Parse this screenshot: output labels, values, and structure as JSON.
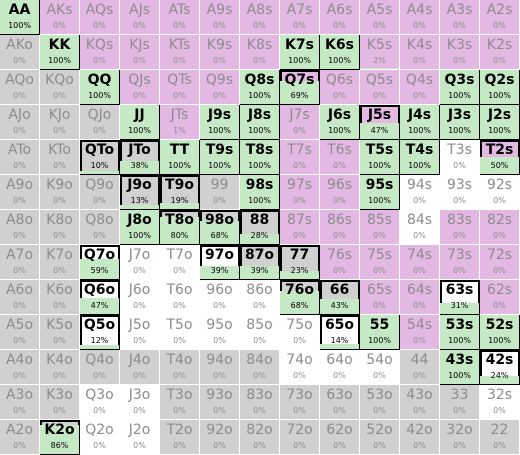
{
  "colors": {
    "pair": "#d0d0d0",
    "suited": "#e3b9e3",
    "offsuit": "#d0d0d0",
    "filled": "#c5e8c5",
    "partial": "#ffffff",
    "border": "#ffffff",
    "text_dim": "#8c8c8c",
    "text_sel": "#000000"
  },
  "grid": [
    [
      {
        "hand": "AA",
        "pct": "100%",
        "v": 100,
        "sel": true
      },
      {
        "hand": "AKs",
        "pct": "0%",
        "v": 0
      },
      {
        "hand": "AQs",
        "pct": "0%",
        "v": 0
      },
      {
        "hand": "AJs",
        "pct": "0%",
        "v": 0
      },
      {
        "hand": "ATs",
        "pct": "0%",
        "v": 0
      },
      {
        "hand": "A9s",
        "pct": "0%",
        "v": 0
      },
      {
        "hand": "A8s",
        "pct": "0%",
        "v": 0
      },
      {
        "hand": "A7s",
        "pct": "0%",
        "v": 0
      },
      {
        "hand": "A6s",
        "pct": "0%",
        "v": 0
      },
      {
        "hand": "A5s",
        "pct": "0%",
        "v": 0
      },
      {
        "hand": "A4s",
        "pct": "0%",
        "v": 0
      },
      {
        "hand": "A3s",
        "pct": "0%",
        "v": 0
      },
      {
        "hand": "A2s",
        "pct": "0%",
        "v": 0
      }
    ],
    [
      {
        "hand": "AKo",
        "pct": "0%",
        "v": 0
      },
      {
        "hand": "KK",
        "pct": "100%",
        "v": 100,
        "sel": true
      },
      {
        "hand": "KQs",
        "pct": "0%",
        "v": 0
      },
      {
        "hand": "KJs",
        "pct": "0%",
        "v": 0
      },
      {
        "hand": "KTs",
        "pct": "0%",
        "v": 0
      },
      {
        "hand": "K9s",
        "pct": "0%",
        "v": 0
      },
      {
        "hand": "K8s",
        "pct": "0%",
        "v": 0
      },
      {
        "hand": "K7s",
        "pct": "100%",
        "v": 100,
        "sel": true
      },
      {
        "hand": "K6s",
        "pct": "100%",
        "v": 100,
        "sel": true
      },
      {
        "hand": "K5s",
        "pct": "2%",
        "v": 2
      },
      {
        "hand": "K4s",
        "pct": "0%",
        "v": 0
      },
      {
        "hand": "K3s",
        "pct": "0%",
        "v": 0
      },
      {
        "hand": "K2s",
        "pct": "0%",
        "v": 0
      }
    ],
    [
      {
        "hand": "AQo",
        "pct": "0%",
        "v": 0
      },
      {
        "hand": "KQo",
        "pct": "0%",
        "v": 0
      },
      {
        "hand": "QQ",
        "pct": "100%",
        "v": 100,
        "sel": true
      },
      {
        "hand": "QJs",
        "pct": "0%",
        "v": 0
      },
      {
        "hand": "QTs",
        "pct": "0%",
        "v": 0
      },
      {
        "hand": "Q9s",
        "pct": "0%",
        "v": 0
      },
      {
        "hand": "Q8s",
        "pct": "100%",
        "v": 100,
        "sel": true
      },
      {
        "hand": "Q7s",
        "pct": "69%",
        "v": 69,
        "sel": true
      },
      {
        "hand": "Q6s",
        "pct": "0%",
        "v": 0
      },
      {
        "hand": "Q5s",
        "pct": "0%",
        "v": 0
      },
      {
        "hand": "Q4s",
        "pct": "0%",
        "v": 0
      },
      {
        "hand": "Q3s",
        "pct": "100%",
        "v": 100,
        "sel": true
      },
      {
        "hand": "Q2s",
        "pct": "100%",
        "v": 100,
        "sel": true
      }
    ],
    [
      {
        "hand": "AJo",
        "pct": "0%",
        "v": 0
      },
      {
        "hand": "KJo",
        "pct": "0%",
        "v": 0
      },
      {
        "hand": "QJo",
        "pct": "0%",
        "v": 0
      },
      {
        "hand": "JJ",
        "pct": "100%",
        "v": 100,
        "sel": true
      },
      {
        "hand": "JTs",
        "pct": "1%",
        "v": 1
      },
      {
        "hand": "J9s",
        "pct": "100%",
        "v": 100,
        "sel": true
      },
      {
        "hand": "J8s",
        "pct": "100%",
        "v": 100,
        "sel": true
      },
      {
        "hand": "J7s",
        "pct": "0%",
        "v": 0
      },
      {
        "hand": "J6s",
        "pct": "100%",
        "v": 100,
        "sel": true
      },
      {
        "hand": "J5s",
        "pct": "47%",
        "v": 47,
        "sel": true
      },
      {
        "hand": "J4s",
        "pct": "100%",
        "v": 100,
        "sel": true
      },
      {
        "hand": "J3s",
        "pct": "100%",
        "v": 100,
        "sel": true
      },
      {
        "hand": "J2s",
        "pct": "100%",
        "v": 100,
        "sel": true
      }
    ],
    [
      {
        "hand": "ATo",
        "pct": "0%",
        "v": 0
      },
      {
        "hand": "KTo",
        "pct": "0%",
        "v": 0
      },
      {
        "hand": "QTo",
        "pct": "10%",
        "v": 10,
        "sel": true
      },
      {
        "hand": "JTo",
        "pct": "38%",
        "v": 38,
        "sel": true
      },
      {
        "hand": "TT",
        "pct": "100%",
        "v": 100,
        "sel": true
      },
      {
        "hand": "T9s",
        "pct": "100%",
        "v": 100,
        "sel": true
      },
      {
        "hand": "T8s",
        "pct": "100%",
        "v": 100,
        "sel": true
      },
      {
        "hand": "T7s",
        "pct": "0%",
        "v": 0
      },
      {
        "hand": "T6s",
        "pct": "0%",
        "v": 0
      },
      {
        "hand": "T5s",
        "pct": "100%",
        "v": 100,
        "sel": true
      },
      {
        "hand": "T4s",
        "pct": "100%",
        "v": 100,
        "sel": true
      },
      {
        "hand": "T3s",
        "pct": "0%",
        "v": 0,
        "white": true
      },
      {
        "hand": "T2s",
        "pct": "50%",
        "v": 50,
        "sel": true
      }
    ],
    [
      {
        "hand": "A9o",
        "pct": "0%",
        "v": 0
      },
      {
        "hand": "K9o",
        "pct": "0%",
        "v": 0
      },
      {
        "hand": "Q9o",
        "pct": "0%",
        "v": 0
      },
      {
        "hand": "J9o",
        "pct": "13%",
        "v": 13,
        "sel": true
      },
      {
        "hand": "T9o",
        "pct": "19%",
        "v": 19,
        "sel": true
      },
      {
        "hand": "99",
        "pct": "0%",
        "v": 0
      },
      {
        "hand": "98s",
        "pct": "100%",
        "v": 100,
        "sel": true
      },
      {
        "hand": "97s",
        "pct": "0%",
        "v": 0
      },
      {
        "hand": "96s",
        "pct": "0%",
        "v": 0
      },
      {
        "hand": "95s",
        "pct": "100%",
        "v": 100,
        "sel": true
      },
      {
        "hand": "94s",
        "pct": "0%",
        "v": 0,
        "white": true
      },
      {
        "hand": "93s",
        "pct": "0%",
        "v": 0,
        "white": true
      },
      {
        "hand": "92s",
        "pct": "0%",
        "v": 0,
        "white": true
      }
    ],
    [
      {
        "hand": "A8o",
        "pct": "0%",
        "v": 0
      },
      {
        "hand": "K8o",
        "pct": "0%",
        "v": 0
      },
      {
        "hand": "Q8o",
        "pct": "0%",
        "v": 0
      },
      {
        "hand": "J8o",
        "pct": "100%",
        "v": 100,
        "sel": true
      },
      {
        "hand": "T8o",
        "pct": "80%",
        "v": 80,
        "sel": true
      },
      {
        "hand": "98o",
        "pct": "68%",
        "v": 68,
        "sel": true
      },
      {
        "hand": "88",
        "pct": "28%",
        "v": 28,
        "sel": true
      },
      {
        "hand": "87s",
        "pct": "0%",
        "v": 0
      },
      {
        "hand": "86s",
        "pct": "0%",
        "v": 0
      },
      {
        "hand": "85s",
        "pct": "0%",
        "v": 0
      },
      {
        "hand": "84s",
        "pct": "0%",
        "v": 0,
        "white": true
      },
      {
        "hand": "83s",
        "pct": "0%",
        "v": 0
      },
      {
        "hand": "82s",
        "pct": "0%",
        "v": 0
      }
    ],
    [
      {
        "hand": "A7o",
        "pct": "0%",
        "v": 0
      },
      {
        "hand": "K7o",
        "pct": "0%",
        "v": 0
      },
      {
        "hand": "Q7o",
        "pct": "59%",
        "v": 59,
        "sel": true,
        "white": true
      },
      {
        "hand": "J7o",
        "pct": "0%",
        "v": 0,
        "white": true
      },
      {
        "hand": "T7o",
        "pct": "0%",
        "v": 0,
        "white": true
      },
      {
        "hand": "97o",
        "pct": "39%",
        "v": 39,
        "sel": true,
        "white": true
      },
      {
        "hand": "87o",
        "pct": "39%",
        "v": 39,
        "sel": true
      },
      {
        "hand": "77",
        "pct": "23%",
        "v": 23,
        "sel": true
      },
      {
        "hand": "76s",
        "pct": "0%",
        "v": 0
      },
      {
        "hand": "75s",
        "pct": "0%",
        "v": 0
      },
      {
        "hand": "74s",
        "pct": "0%",
        "v": 0
      },
      {
        "hand": "73s",
        "pct": "0%",
        "v": 0
      },
      {
        "hand": "72s",
        "pct": "0%",
        "v": 0
      }
    ],
    [
      {
        "hand": "A6o",
        "pct": "0%",
        "v": 0
      },
      {
        "hand": "K6o",
        "pct": "0%",
        "v": 0
      },
      {
        "hand": "Q6o",
        "pct": "47%",
        "v": 47,
        "sel": true,
        "white": true
      },
      {
        "hand": "J6o",
        "pct": "0%",
        "v": 0,
        "white": true
      },
      {
        "hand": "T6o",
        "pct": "0%",
        "v": 0,
        "white": true
      },
      {
        "hand": "96o",
        "pct": "0%",
        "v": 0,
        "white": true
      },
      {
        "hand": "86o",
        "pct": "0%",
        "v": 0,
        "white": true
      },
      {
        "hand": "76o",
        "pct": "68%",
        "v": 68,
        "sel": true
      },
      {
        "hand": "66",
        "pct": "43%",
        "v": 43,
        "sel": true
      },
      {
        "hand": "65s",
        "pct": "0%",
        "v": 0
      },
      {
        "hand": "64s",
        "pct": "0%",
        "v": 0
      },
      {
        "hand": "63s",
        "pct": "31%",
        "v": 31,
        "sel": true,
        "white": true
      },
      {
        "hand": "62s",
        "pct": "0%",
        "v": 0
      }
    ],
    [
      {
        "hand": "A5o",
        "pct": "0%",
        "v": 0
      },
      {
        "hand": "K5o",
        "pct": "0%",
        "v": 0
      },
      {
        "hand": "Q5o",
        "pct": "12%",
        "v": 12,
        "sel": true,
        "white": true
      },
      {
        "hand": "J5o",
        "pct": "0%",
        "v": 0,
        "white": true
      },
      {
        "hand": "T5o",
        "pct": "0%",
        "v": 0,
        "white": true
      },
      {
        "hand": "95o",
        "pct": "0%",
        "v": 0,
        "white": true
      },
      {
        "hand": "85o",
        "pct": "0%",
        "v": 0,
        "white": true
      },
      {
        "hand": "75o",
        "pct": "0%",
        "v": 0,
        "white": true
      },
      {
        "hand": "65o",
        "pct": "14%",
        "v": 14,
        "sel": true,
        "white": true
      },
      {
        "hand": "55",
        "pct": "100%",
        "v": 100,
        "sel": true
      },
      {
        "hand": "54s",
        "pct": "0%",
        "v": 0
      },
      {
        "hand": "53s",
        "pct": "100%",
        "v": 100,
        "sel": true
      },
      {
        "hand": "52s",
        "pct": "100%",
        "v": 100,
        "sel": true
      }
    ],
    [
      {
        "hand": "A4o",
        "pct": "0%",
        "v": 0
      },
      {
        "hand": "K4o",
        "pct": "0%",
        "v": 0
      },
      {
        "hand": "Q4o",
        "pct": "0%",
        "v": 0
      },
      {
        "hand": "J4o",
        "pct": "0%",
        "v": 0
      },
      {
        "hand": "T4o",
        "pct": "0%",
        "v": 0
      },
      {
        "hand": "94o",
        "pct": "0%",
        "v": 0
      },
      {
        "hand": "84o",
        "pct": "0%",
        "v": 0
      },
      {
        "hand": "74o",
        "pct": "0%",
        "v": 0,
        "white": true
      },
      {
        "hand": "64o",
        "pct": "0%",
        "v": 0,
        "white": true
      },
      {
        "hand": "54o",
        "pct": "0%",
        "v": 0,
        "white": true
      },
      {
        "hand": "44",
        "pct": "0%",
        "v": 0
      },
      {
        "hand": "43s",
        "pct": "100%",
        "v": 100,
        "sel": true
      },
      {
        "hand": "42s",
        "pct": "24%",
        "v": 24,
        "sel": true,
        "white": true
      }
    ],
    [
      {
        "hand": "A3o",
        "pct": "0%",
        "v": 0
      },
      {
        "hand": "K3o",
        "pct": "0%",
        "v": 0
      },
      {
        "hand": "Q3o",
        "pct": "0%",
        "v": 0,
        "white": true
      },
      {
        "hand": "J3o",
        "pct": "0%",
        "v": 0,
        "white": true
      },
      {
        "hand": "T3o",
        "pct": "0%",
        "v": 0
      },
      {
        "hand": "93o",
        "pct": "0%",
        "v": 0
      },
      {
        "hand": "83o",
        "pct": "0%",
        "v": 0
      },
      {
        "hand": "73o",
        "pct": "0%",
        "v": 0
      },
      {
        "hand": "63o",
        "pct": "0%",
        "v": 0
      },
      {
        "hand": "53o",
        "pct": "0%",
        "v": 0
      },
      {
        "hand": "43o",
        "pct": "0%",
        "v": 0
      },
      {
        "hand": "33",
        "pct": "0%",
        "v": 0
      },
      {
        "hand": "32s",
        "pct": "0%",
        "v": 0,
        "white": true
      }
    ],
    [
      {
        "hand": "A2o",
        "pct": "0%",
        "v": 0
      },
      {
        "hand": "K2o",
        "pct": "86%",
        "v": 86,
        "sel": true
      },
      {
        "hand": "Q2o",
        "pct": "0%",
        "v": 0,
        "white": true
      },
      {
        "hand": "J2o",
        "pct": "0%",
        "v": 0,
        "white": true
      },
      {
        "hand": "T2o",
        "pct": "0%",
        "v": 0
      },
      {
        "hand": "92o",
        "pct": "0%",
        "v": 0
      },
      {
        "hand": "82o",
        "pct": "0%",
        "v": 0
      },
      {
        "hand": "72o",
        "pct": "0%",
        "v": 0
      },
      {
        "hand": "62o",
        "pct": "0%",
        "v": 0
      },
      {
        "hand": "52o",
        "pct": "0%",
        "v": 0
      },
      {
        "hand": "42o",
        "pct": "0%",
        "v": 0
      },
      {
        "hand": "32o",
        "pct": "0%",
        "v": 0
      },
      {
        "hand": "22",
        "pct": "0%",
        "v": 0
      }
    ]
  ]
}
